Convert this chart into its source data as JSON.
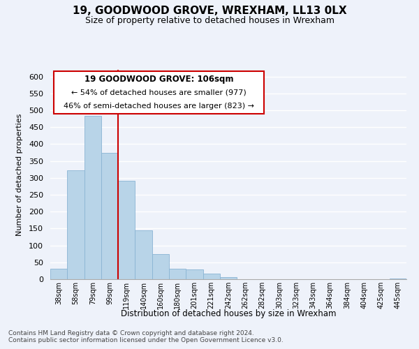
{
  "title": "19, GOODWOOD GROVE, WREXHAM, LL13 0LX",
  "subtitle": "Size of property relative to detached houses in Wrexham",
  "xlabel": "Distribution of detached houses by size in Wrexham",
  "ylabel": "Number of detached properties",
  "bar_color": "#b8d4e8",
  "bar_edge_color": "#8ab4d4",
  "categories": [
    "38sqm",
    "58sqm",
    "79sqm",
    "99sqm",
    "119sqm",
    "140sqm",
    "160sqm",
    "180sqm",
    "201sqm",
    "221sqm",
    "242sqm",
    "262sqm",
    "282sqm",
    "303sqm",
    "323sqm",
    "343sqm",
    "364sqm",
    "384sqm",
    "404sqm",
    "425sqm",
    "445sqm"
  ],
  "values": [
    32,
    322,
    483,
    375,
    291,
    144,
    75,
    32,
    29,
    16,
    7,
    1,
    1,
    0,
    0,
    0,
    0,
    0,
    0,
    0,
    3
  ],
  "ylim": [
    0,
    620
  ],
  "yticks": [
    0,
    50,
    100,
    150,
    200,
    250,
    300,
    350,
    400,
    450,
    500,
    550,
    600
  ],
  "property_line_color": "#cc0000",
  "annotation_text_line1": "19 GOODWOOD GROVE: 106sqm",
  "annotation_text_line2": "← 54% of detached houses are smaller (977)",
  "annotation_text_line3": "46% of semi-detached houses are larger (823) →",
  "footer_line1": "Contains HM Land Registry data © Crown copyright and database right 2024.",
  "footer_line2": "Contains public sector information licensed under the Open Government Licence v3.0.",
  "background_color": "#eef2fa",
  "grid_color": "#ffffff"
}
